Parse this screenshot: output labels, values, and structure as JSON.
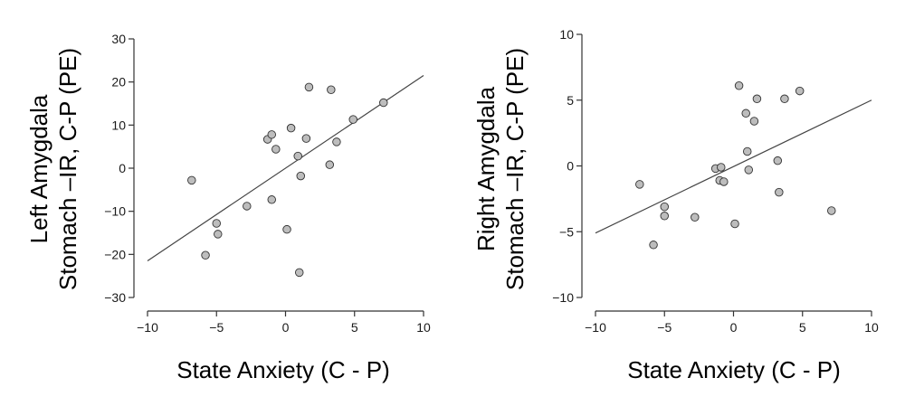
{
  "colors": {
    "point_fill": "#bdbdbd",
    "point_stroke": "#333333",
    "line": "#444444",
    "text": "#000000"
  },
  "chart_data": [
    {
      "type": "scatter",
      "title": "",
      "xlabel": "State Anxiety (C - P)",
      "ylabel_line1": "Left Amygdala",
      "ylabel_line2": "Stomach –IR, C-P (PE)",
      "xlim": [
        -10,
        10
      ],
      "ylim": [
        -30,
        30
      ],
      "x_ticks": [
        -10,
        -5,
        0,
        5,
        10
      ],
      "x_tick_labels": [
        "−10",
        "−5",
        "0",
        "5",
        "10"
      ],
      "y_ticks": [
        -30,
        -20,
        -10,
        0,
        10,
        20,
        30
      ],
      "y_tick_labels": [
        "−30",
        "−20",
        "−10",
        "0",
        "10",
        "20",
        "30"
      ],
      "points": [
        {
          "x": -6.8,
          "y": -2.8
        },
        {
          "x": -5.8,
          "y": -20.2
        },
        {
          "x": -5.0,
          "y": -12.8
        },
        {
          "x": -4.9,
          "y": -15.3
        },
        {
          "x": -2.8,
          "y": -8.8
        },
        {
          "x": -1.3,
          "y": 6.7
        },
        {
          "x": -1.0,
          "y": 7.8
        },
        {
          "x": -1.0,
          "y": -7.3
        },
        {
          "x": -0.7,
          "y": 4.4
        },
        {
          "x": 0.1,
          "y": -14.2
        },
        {
          "x": 0.4,
          "y": 9.3
        },
        {
          "x": 0.9,
          "y": 2.8
        },
        {
          "x": 1.0,
          "y": -24.2
        },
        {
          "x": 1.1,
          "y": -1.8
        },
        {
          "x": 1.5,
          "y": 6.9
        },
        {
          "x": 1.7,
          "y": 18.8
        },
        {
          "x": 3.2,
          "y": 0.8
        },
        {
          "x": 3.3,
          "y": 18.2
        },
        {
          "x": 3.7,
          "y": 6.1
        },
        {
          "x": 4.9,
          "y": 11.3
        },
        {
          "x": 7.1,
          "y": 15.2
        }
      ],
      "fit_line": {
        "x": [
          -10,
          10
        ],
        "y": [
          -21.5,
          21.5
        ]
      }
    },
    {
      "type": "scatter",
      "title": "",
      "xlabel": "State Anxiety (C - P)",
      "ylabel_line1": "Right Amygdala",
      "ylabel_line2": "Stomach –IR, C-P (PE)",
      "xlim": [
        -10,
        10
      ],
      "ylim": [
        -10,
        10
      ],
      "x_ticks": [
        -10,
        -5,
        0,
        5,
        10
      ],
      "x_tick_labels": [
        "−10",
        "−5",
        "0",
        "5",
        "10"
      ],
      "y_ticks": [
        -10,
        -5,
        0,
        5,
        10
      ],
      "y_tick_labels": [
        "−10",
        "−5",
        "0",
        "5",
        "10"
      ],
      "points": [
        {
          "x": -6.8,
          "y": -1.4
        },
        {
          "x": -5.8,
          "y": -6.0
        },
        {
          "x": -5.0,
          "y": -3.1
        },
        {
          "x": -5.0,
          "y": -3.8
        },
        {
          "x": -2.8,
          "y": -3.9
        },
        {
          "x": -1.3,
          "y": -0.2
        },
        {
          "x": -1.0,
          "y": -1.1
        },
        {
          "x": -0.9,
          "y": -0.1
        },
        {
          "x": -0.7,
          "y": -1.2
        },
        {
          "x": 0.1,
          "y": -4.4
        },
        {
          "x": 0.4,
          "y": 6.1
        },
        {
          "x": 0.9,
          "y": 4.0
        },
        {
          "x": 1.0,
          "y": 1.1
        },
        {
          "x": 1.1,
          "y": -0.3
        },
        {
          "x": 1.5,
          "y": 3.4
        },
        {
          "x": 1.7,
          "y": 5.1
        },
        {
          "x": 3.2,
          "y": 0.4
        },
        {
          "x": 3.3,
          "y": -2.0
        },
        {
          "x": 3.7,
          "y": 5.1
        },
        {
          "x": 4.8,
          "y": 5.7
        },
        {
          "x": 7.1,
          "y": -3.4
        }
      ],
      "fit_line": {
        "x": [
          -10,
          10
        ],
        "y": [
          -5.1,
          5.0
        ]
      }
    }
  ]
}
